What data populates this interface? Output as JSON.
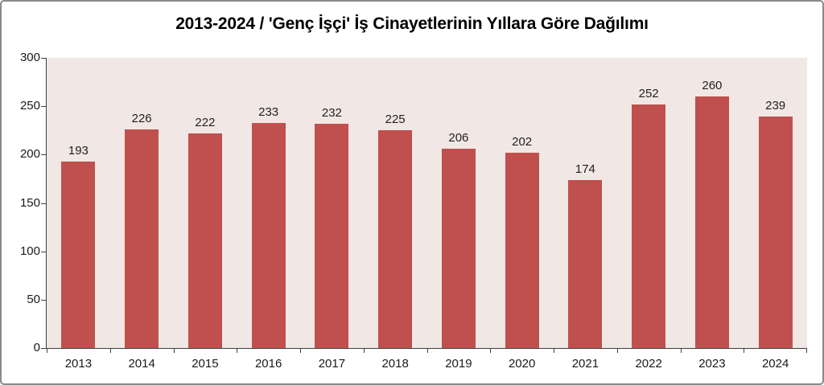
{
  "title": "2013-2024 / 'Genç İşçi' İş Cinayetlerinin Yıllara Göre Dağılımı",
  "chart_data": {
    "type": "bar",
    "title": "2013-2024 / 'Genç İşçi' İş Cinayetlerinin Yıllara Göre Dağılımı",
    "categories": [
      "2013",
      "2014",
      "2015",
      "2016",
      "2017",
      "2018",
      "2019",
      "2020",
      "2021",
      "2022",
      "2023",
      "2024"
    ],
    "values": [
      193,
      226,
      222,
      233,
      232,
      225,
      206,
      202,
      174,
      252,
      260,
      239
    ],
    "data_labels": [
      "193",
      "226",
      "222",
      "233",
      "232",
      "225",
      "206",
      "202",
      "174",
      "252",
      "260",
      "239"
    ],
    "xlabel": "",
    "ylabel": "",
    "ylim": [
      0,
      300
    ],
    "yticks": [
      0,
      50,
      100,
      150,
      200,
      250,
      300
    ],
    "grid": false,
    "legend": "none",
    "colors": {
      "bar": "#C0504D",
      "plot_bg": "#F1E8E5",
      "outer_bg": "#FFFFFF",
      "frame_border": "#8A8A8A",
      "axis": "#404040",
      "text": "#1A1A1A",
      "title_text": "#000000"
    }
  }
}
